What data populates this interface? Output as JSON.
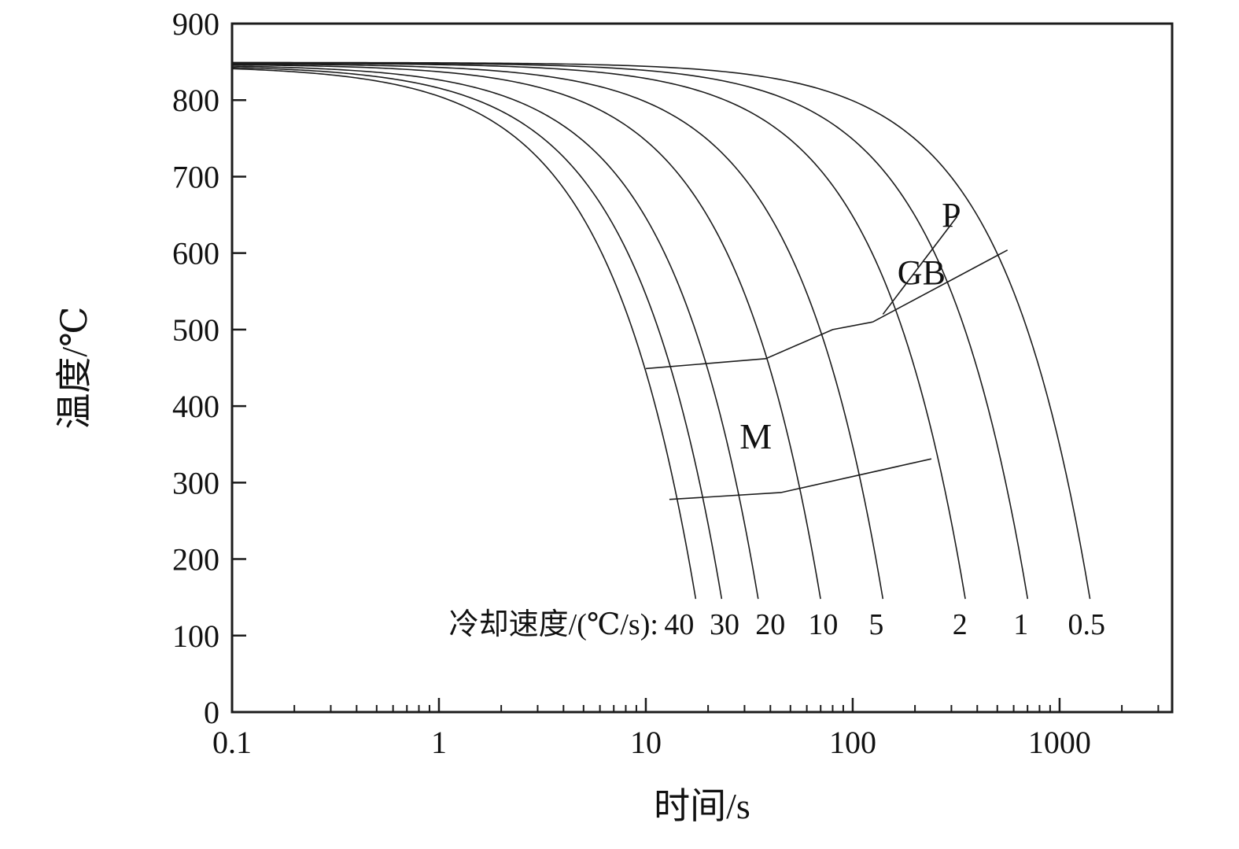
{
  "figure": {
    "background": "#ffffff",
    "stroke_color": "#1c1c1c",
    "kind": "CCT continuous-cooling-transformation diagram"
  },
  "chart_data": {
    "type": "line",
    "title": "",
    "xlabel": "时间/s",
    "ylabel": "温度/℃",
    "x_scale": "log",
    "grid": false,
    "legend": "none",
    "xlim": [
      0.1,
      3500
    ],
    "ylim": [
      0,
      900
    ],
    "x_major_ticks": [
      0.1,
      1,
      10,
      100,
      1000
    ],
    "x_major_tick_labels": [
      "0.1",
      "1",
      "10",
      "100",
      "1000"
    ],
    "y_major_tick_step": 100,
    "y_tick_labels": [
      "0",
      "100",
      "200",
      "300",
      "400",
      "500",
      "600",
      "700",
      "800",
      "900"
    ],
    "cooling_curves": {
      "model": "linear cooling T(t) = T0 - rate * t, plotted on log time axis",
      "end_temperature_c": 148,
      "series": [
        {
          "name": "rate-40",
          "rate_c_per_s": 40,
          "T0": 845.0
        },
        {
          "name": "rate-30",
          "rate_c_per_s": 30,
          "T0": 845.7
        },
        {
          "name": "rate-20",
          "rate_c_per_s": 20,
          "T0": 846.4
        },
        {
          "name": "rate-10",
          "rate_c_per_s": 10,
          "T0": 847.1
        },
        {
          "name": "rate-5",
          "rate_c_per_s": 5,
          "T0": 847.7
        },
        {
          "name": "rate-2",
          "rate_c_per_s": 2,
          "T0": 848.3
        },
        {
          "name": "rate-1",
          "rate_c_per_s": 1,
          "T0": 848.8
        },
        {
          "name": "rate-0.5",
          "rate_c_per_s": 0.5,
          "T0": 849.2
        }
      ]
    },
    "phase_boundaries": [
      {
        "name": "martensite-start",
        "points": [
          [
            13,
            278
          ],
          [
            45,
            287
          ],
          [
            240,
            331
          ]
        ]
      },
      {
        "name": "bainite-start",
        "points": [
          [
            10,
            449
          ],
          [
            38,
            462
          ],
          [
            80,
            500
          ],
          [
            125,
            510
          ]
        ]
      },
      {
        "name": "gb-upper",
        "points": [
          [
            125,
            510
          ],
          [
            560,
            604
          ]
        ]
      },
      {
        "name": "pearlite-start",
        "points": [
          [
            140,
            520
          ],
          [
            320,
            648
          ]
        ]
      }
    ],
    "phase_labels": [
      {
        "text": "M",
        "x": 34,
        "y": 360,
        "size": 46
      },
      {
        "text": "GB",
        "x": 215,
        "y": 575,
        "size": 44
      },
      {
        "text": "P",
        "x": 300,
        "y": 650,
        "size": 44
      }
    ],
    "annotation": {
      "prefix": "冷却速度/(℃/s):",
      "prefix_anchor_x": 11.5,
      "labels_y": 115,
      "rate_labels": [
        {
          "text": "40",
          "x": 14.5
        },
        {
          "text": "30",
          "x": 24
        },
        {
          "text": "20",
          "x": 40
        },
        {
          "text": "10",
          "x": 72
        },
        {
          "text": "5",
          "x": 130
        },
        {
          "text": "2",
          "x": 330
        },
        {
          "text": "1",
          "x": 650
        },
        {
          "text": "0.5",
          "x": 1350
        }
      ]
    }
  }
}
